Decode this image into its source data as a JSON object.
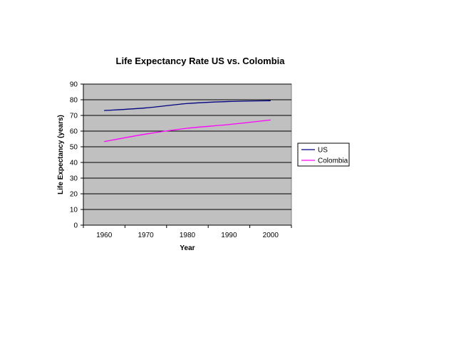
{
  "chart_data": {
    "type": "line",
    "title": "Life Expectancy Rate US vs. Colombia",
    "xlabel": "Year",
    "ylabel": "Life Expectancy (years)",
    "categories": [
      "1960",
      "1970",
      "1980",
      "1990",
      "2000"
    ],
    "ylim": [
      0,
      90
    ],
    "yticks": [
      0,
      10,
      20,
      30,
      40,
      50,
      60,
      70,
      80,
      90
    ],
    "grid": true,
    "legend_position": "right",
    "plot_background": "#c0c0c0",
    "series": [
      {
        "name": "US",
        "color": "#000080",
        "values": [
          73.1,
          74.8,
          77.6,
          78.9,
          79.4
        ]
      },
      {
        "name": "Colombia",
        "color": "#ff00ff",
        "values": [
          53.3,
          58.1,
          61.8,
          64.2,
          67.1
        ]
      }
    ]
  }
}
